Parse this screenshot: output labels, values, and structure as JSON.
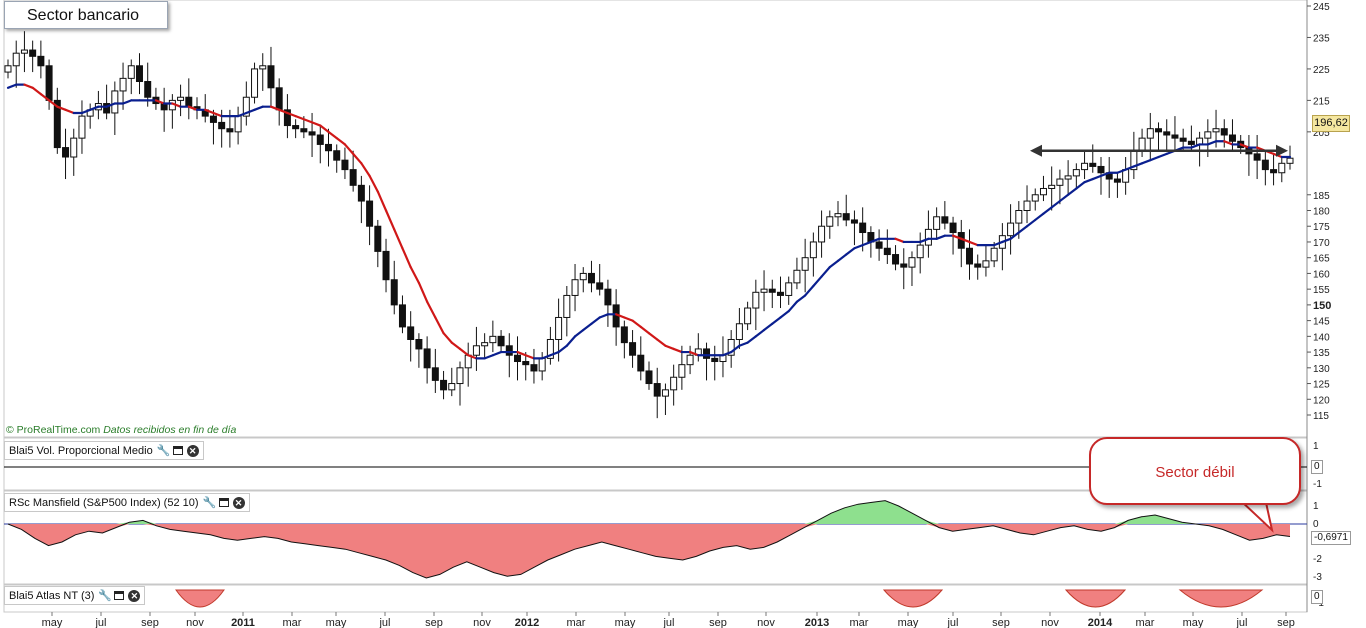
{
  "title": "Sector bancario",
  "copyright": "© ProRealTime.com",
  "data_note": "Datos recibidos en fin de día",
  "callout": "Sector débil",
  "price_label": "196,62",
  "panels": {
    "vol": {
      "name": "Blai5 Vol. Proporcional Medio",
      "axis": [
        "1",
        "0",
        "-1"
      ],
      "value": "0"
    },
    "rsc": {
      "name": "RSc Mansfield (S&P500 Index) (52 10)",
      "axis": [
        "1",
        "0",
        "-1",
        "-2",
        "-3"
      ],
      "value": "-0,6971"
    },
    "atlas": {
      "name": "Blai5 Atlas NT (3)",
      "axis": [
        "0",
        "-1"
      ],
      "value": "0"
    }
  },
  "colors": {
    "up": "#ffffff",
    "down": "#111111",
    "ma_red": "#d01818",
    "ma_blue": "#0a1f8f",
    "pos_fill": "#8ee08e",
    "neg_fill": "#f08080",
    "callout": "#c62828"
  },
  "chart_data": {
    "type": "candlestick",
    "title": "Sector bancario",
    "y_ticks": [
      245,
      235,
      225,
      215,
      205,
      185,
      180,
      175,
      170,
      165,
      160,
      155,
      150,
      145,
      140,
      135,
      130,
      125,
      120,
      115
    ],
    "x_labels": [
      "may",
      "jul",
      "sep",
      "nov",
      "2011",
      "mar",
      "may",
      "jul",
      "sep",
      "nov",
      "2012",
      "mar",
      "may",
      "jul",
      "sep",
      "nov",
      "2013",
      "mar",
      "may",
      "jul",
      "sep",
      "nov",
      "2014",
      "mar",
      "may",
      "jul",
      "sep"
    ],
    "last": 196.62,
    "closes": [
      226,
      230,
      231,
      229,
      226,
      215,
      200,
      197,
      203,
      210,
      212,
      214,
      211,
      218,
      222,
      226,
      221,
      216,
      214,
      212,
      215,
      216,
      213,
      212,
      210,
      208,
      206,
      205,
      210,
      216,
      225,
      226,
      219,
      212,
      207,
      206,
      205,
      204,
      201,
      199,
      196,
      193,
      188,
      183,
      175,
      167,
      158,
      150,
      143,
      139,
      136,
      130,
      126,
      123,
      125,
      130,
      134,
      137,
      138,
      140,
      137,
      134,
      132,
      131,
      129,
      133,
      139,
      146,
      153,
      158,
      160,
      157,
      155,
      150,
      143,
      138,
      134,
      129,
      125,
      121,
      123,
      127,
      131,
      134,
      136,
      133,
      132,
      134,
      139,
      144,
      149,
      154,
      155,
      154,
      153,
      157,
      161,
      165,
      170,
      175,
      178,
      179,
      177,
      176,
      173,
      170,
      168,
      166,
      163,
      162,
      165,
      169,
      174,
      178,
      176,
      173,
      168,
      163,
      162,
      164,
      168,
      172,
      176,
      180,
      183,
      185,
      187,
      188,
      190,
      191,
      193,
      195,
      194,
      192,
      190,
      189,
      193,
      199,
      203,
      206,
      205,
      204,
      203,
      202,
      201,
      203,
      205,
      206,
      204,
      202,
      200,
      198,
      196,
      193,
      192,
      195,
      196.62
    ],
    "ma_short": [
      219,
      220,
      220,
      219,
      217,
      215,
      213,
      212,
      211,
      211,
      212,
      213,
      213,
      214,
      214,
      215,
      215,
      215,
      215,
      214,
      214,
      213,
      213,
      212,
      212,
      211,
      210,
      210,
      210,
      211,
      212,
      213,
      213,
      212,
      211,
      210,
      209,
      208,
      207,
      205,
      203,
      201,
      198,
      195,
      191,
      186,
      180,
      174,
      168,
      162,
      157,
      151,
      146,
      141,
      138,
      136,
      134,
      133,
      133,
      134,
      135,
      135,
      135,
      134,
      133,
      133,
      134,
      135,
      137,
      140,
      142,
      144,
      146,
      147,
      147,
      146,
      145,
      143,
      141,
      139,
      137,
      136,
      135,
      135,
      134,
      134,
      134,
      134,
      135,
      137,
      138,
      140,
      142,
      144,
      146,
      148,
      151,
      153,
      156,
      159,
      162,
      164,
      166,
      168,
      169,
      170,
      171,
      171,
      171,
      170,
      170,
      170,
      171,
      171,
      172,
      172,
      171,
      170,
      169,
      169,
      169,
      170,
      171,
      173,
      175,
      177,
      179,
      181,
      183,
      185,
      187,
      189,
      190,
      191,
      192,
      192,
      193,
      194,
      195,
      196,
      197,
      198,
      199,
      200,
      200,
      201,
      201,
      202,
      202,
      201,
      201,
      200,
      200,
      199,
      198,
      197,
      197
    ],
    "rsc": [
      0,
      -0.3,
      -0.8,
      -1.2,
      -1.0,
      -0.6,
      -0.4,
      -0.5,
      -0.2,
      0.1,
      0.2,
      -0.1,
      -0.3,
      -0.4,
      -0.5,
      -0.6,
      -0.8,
      -0.9,
      -0.8,
      -0.7,
      -0.8,
      -1.0,
      -1.1,
      -1.2,
      -1.3,
      -1.4,
      -1.6,
      -1.8,
      -2.0,
      -2.3,
      -2.7,
      -3.0,
      -2.8,
      -2.4,
      -2.1,
      -2.4,
      -2.7,
      -2.9,
      -2.8,
      -2.4,
      -2.0,
      -1.7,
      -1.4,
      -1.2,
      -1.0,
      -1.2,
      -1.4,
      -1.6,
      -1.8,
      -1.9,
      -2.0,
      -1.8,
      -1.5,
      -1.3,
      -1.2,
      -1.4,
      -1.3,
      -1.0,
      -0.6,
      -0.2,
      0.2,
      0.6,
      0.9,
      1.1,
      1.2,
      1.3,
      1.0,
      0.6,
      0.2,
      -0.2,
      -0.4,
      -0.3,
      -0.2,
      -0.1,
      -0.3,
      -0.5,
      -0.6,
      -0.4,
      -0.2,
      -0.1,
      -0.3,
      -0.4,
      -0.2,
      0.2,
      0.4,
      0.5,
      0.3,
      0.1,
      0.0,
      -0.1,
      -0.3,
      -0.6,
      -0.9,
      -0.8,
      -0.6,
      -0.6971
    ]
  }
}
